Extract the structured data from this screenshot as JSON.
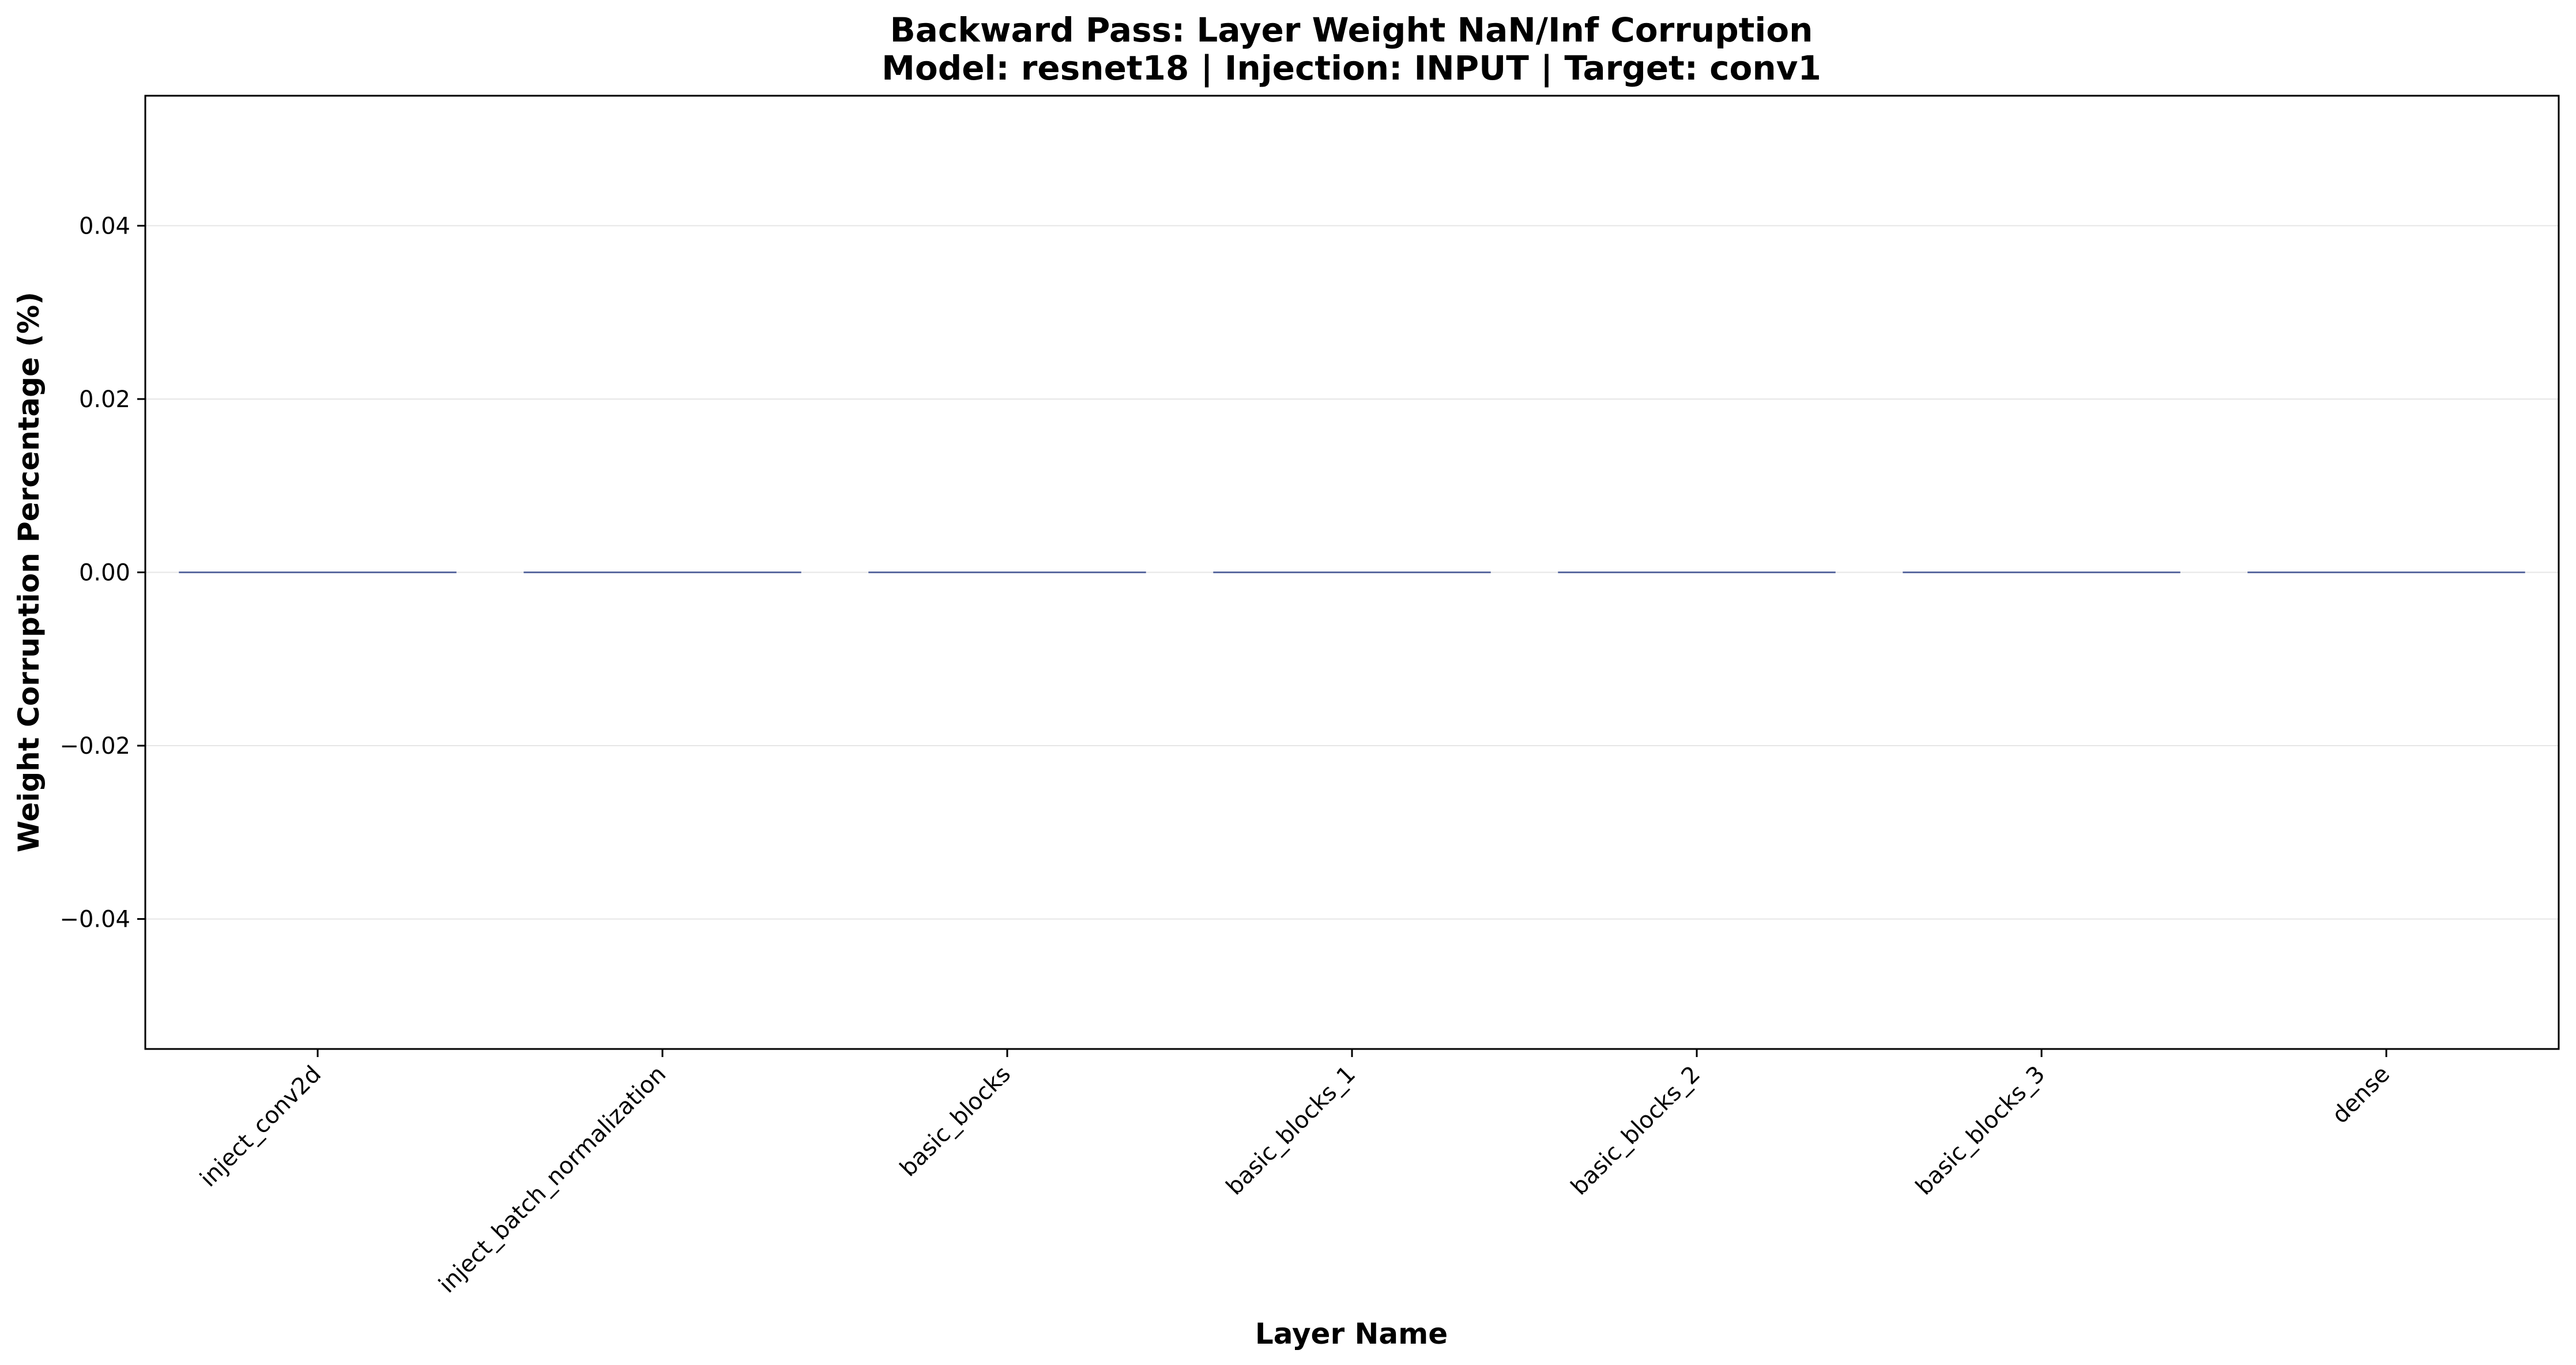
{
  "chart_data": {
    "type": "bar",
    "title": "Backward Pass: Layer Weight NaN/Inf Corruption",
    "subtitle": "Model: resnet18 | Injection: INPUT | Target: conv1",
    "xlabel": "Layer Name",
    "ylabel": "Weight Corruption Percentage (%)",
    "categories": [
      "inject_conv2d",
      "inject_batch_normalization",
      "basic_blocks",
      "basic_blocks_1",
      "basic_blocks_2",
      "basic_blocks_3",
      "dense"
    ],
    "values": [
      0,
      0,
      0,
      0,
      0,
      0,
      0
    ],
    "ylim": [
      -0.055,
      0.055
    ],
    "yticks": [
      -0.04,
      -0.02,
      0.0,
      0.02,
      0.04
    ],
    "ytick_labels": [
      "−0.04",
      "−0.02",
      "0.00",
      "0.02",
      "0.04"
    ],
    "grid": "horizontal",
    "legend": "none",
    "colors": {
      "bar_edge": "#5b6aa0",
      "grid": "#e6e6e6",
      "axes": "#000000"
    }
  }
}
